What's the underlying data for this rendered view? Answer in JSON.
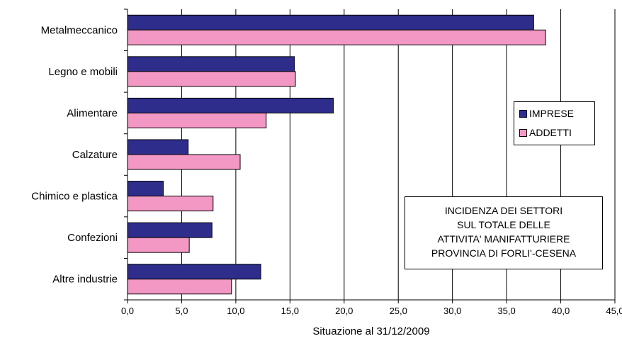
{
  "chart_data": {
    "type": "bar",
    "orientation": "horizontal",
    "categories": [
      "Metalmeccanico",
      "Legno e mobili",
      "Alimentare",
      "Calzature",
      "Chimico e plastica",
      "Confezioni",
      "Altre industrie"
    ],
    "series": [
      {
        "name": "IMPRESE",
        "color": "#2e2d8c",
        "values": [
          37.5,
          15.4,
          19.0,
          5.6,
          3.3,
          7.8,
          12.3
        ]
      },
      {
        "name": "ADDETTI",
        "color": "#f398c4",
        "values": [
          38.6,
          15.5,
          12.8,
          10.4,
          7.9,
          5.7,
          9.6
        ]
      }
    ],
    "xlim": [
      0,
      45
    ],
    "xticks": [
      "0,0",
      "5,0",
      "10,0",
      "15,0",
      "20,0",
      "25,0",
      "30,0",
      "35,0",
      "40,0",
      "45,0"
    ],
    "xlabel": "Situazione al 31/12/2009",
    "grid": "vertical",
    "legend_position": "right"
  },
  "annotation": {
    "lines": [
      "INCIDENZA DEI SETTORI",
      "SUL TOTALE DELLE",
      "ATTIVITA' MANIFATTURIERE",
      "PROVINCIA DI FORLI'-CESENA"
    ]
  }
}
